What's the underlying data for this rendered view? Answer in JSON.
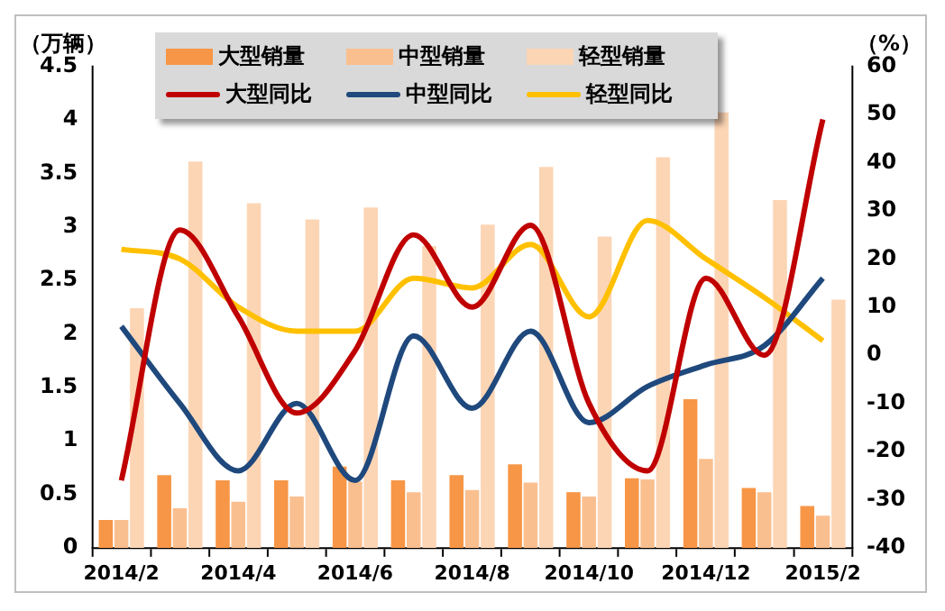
{
  "chart_data": {
    "type": "bar",
    "ylabel": "（万辆）",
    "y2label": "（%）",
    "categories": [
      "2014/2",
      null,
      "2014/4",
      null,
      "2014/6",
      null,
      "2014/8",
      null,
      "2014/10",
      null,
      "2014/12",
      null,
      "2015/2"
    ],
    "series": [
      {
        "name": "大型销量",
        "color": "#f79646",
        "values": [
          0.26,
          0.68,
          0.63,
          0.63,
          0.76,
          0.63,
          0.68,
          0.78,
          0.52,
          0.65,
          1.39,
          0.56,
          0.39
        ]
      },
      {
        "name": "中型销量",
        "color": "#fabf8f",
        "values": [
          0.26,
          0.37,
          0.43,
          0.48,
          0.62,
          0.52,
          0.54,
          0.61,
          0.48,
          0.64,
          0.83,
          0.52,
          0.3
        ]
      },
      {
        "name": "轻型销量",
        "color": "#fcd5b5",
        "values": [
          2.24,
          3.61,
          3.22,
          3.07,
          3.18,
          2.82,
          3.02,
          3.56,
          2.91,
          3.65,
          4.07,
          3.25,
          2.32
        ]
      },
      {
        "name": "大型同比",
        "type": "line",
        "axis": "y2",
        "color": "#c00000",
        "values": [
          -26,
          26,
          8,
          -12,
          1,
          25,
          10,
          27,
          -10,
          -24,
          16,
          0,
          49
        ]
      },
      {
        "name": "中型同比",
        "type": "line",
        "axis": "y2",
        "color": "#1f497d",
        "values": [
          6,
          -10,
          -24,
          -10,
          -26,
          4,
          -11,
          5,
          -14,
          -6.5,
          -2,
          2,
          16
        ]
      },
      {
        "name": "轻型同比",
        "type": "line",
        "axis": "y2",
        "color": "#ffc000",
        "values": [
          22,
          20,
          10,
          5,
          5,
          16,
          14,
          23,
          8,
          28,
          20,
          12,
          3
        ]
      }
    ],
    "ylim": [
      0,
      4.5
    ],
    "yticks": [
      0,
      0.5,
      1,
      1.5,
      2,
      2.5,
      3,
      3.5,
      4,
      4.5
    ],
    "y2lim": [
      -40,
      60
    ],
    "y2ticks": [
      -40,
      -30,
      -20,
      -10,
      0,
      10,
      20,
      30,
      40,
      50,
      60
    ],
    "grid": false,
    "legend": "top",
    "marker": "none",
    "line_style": "solid"
  }
}
